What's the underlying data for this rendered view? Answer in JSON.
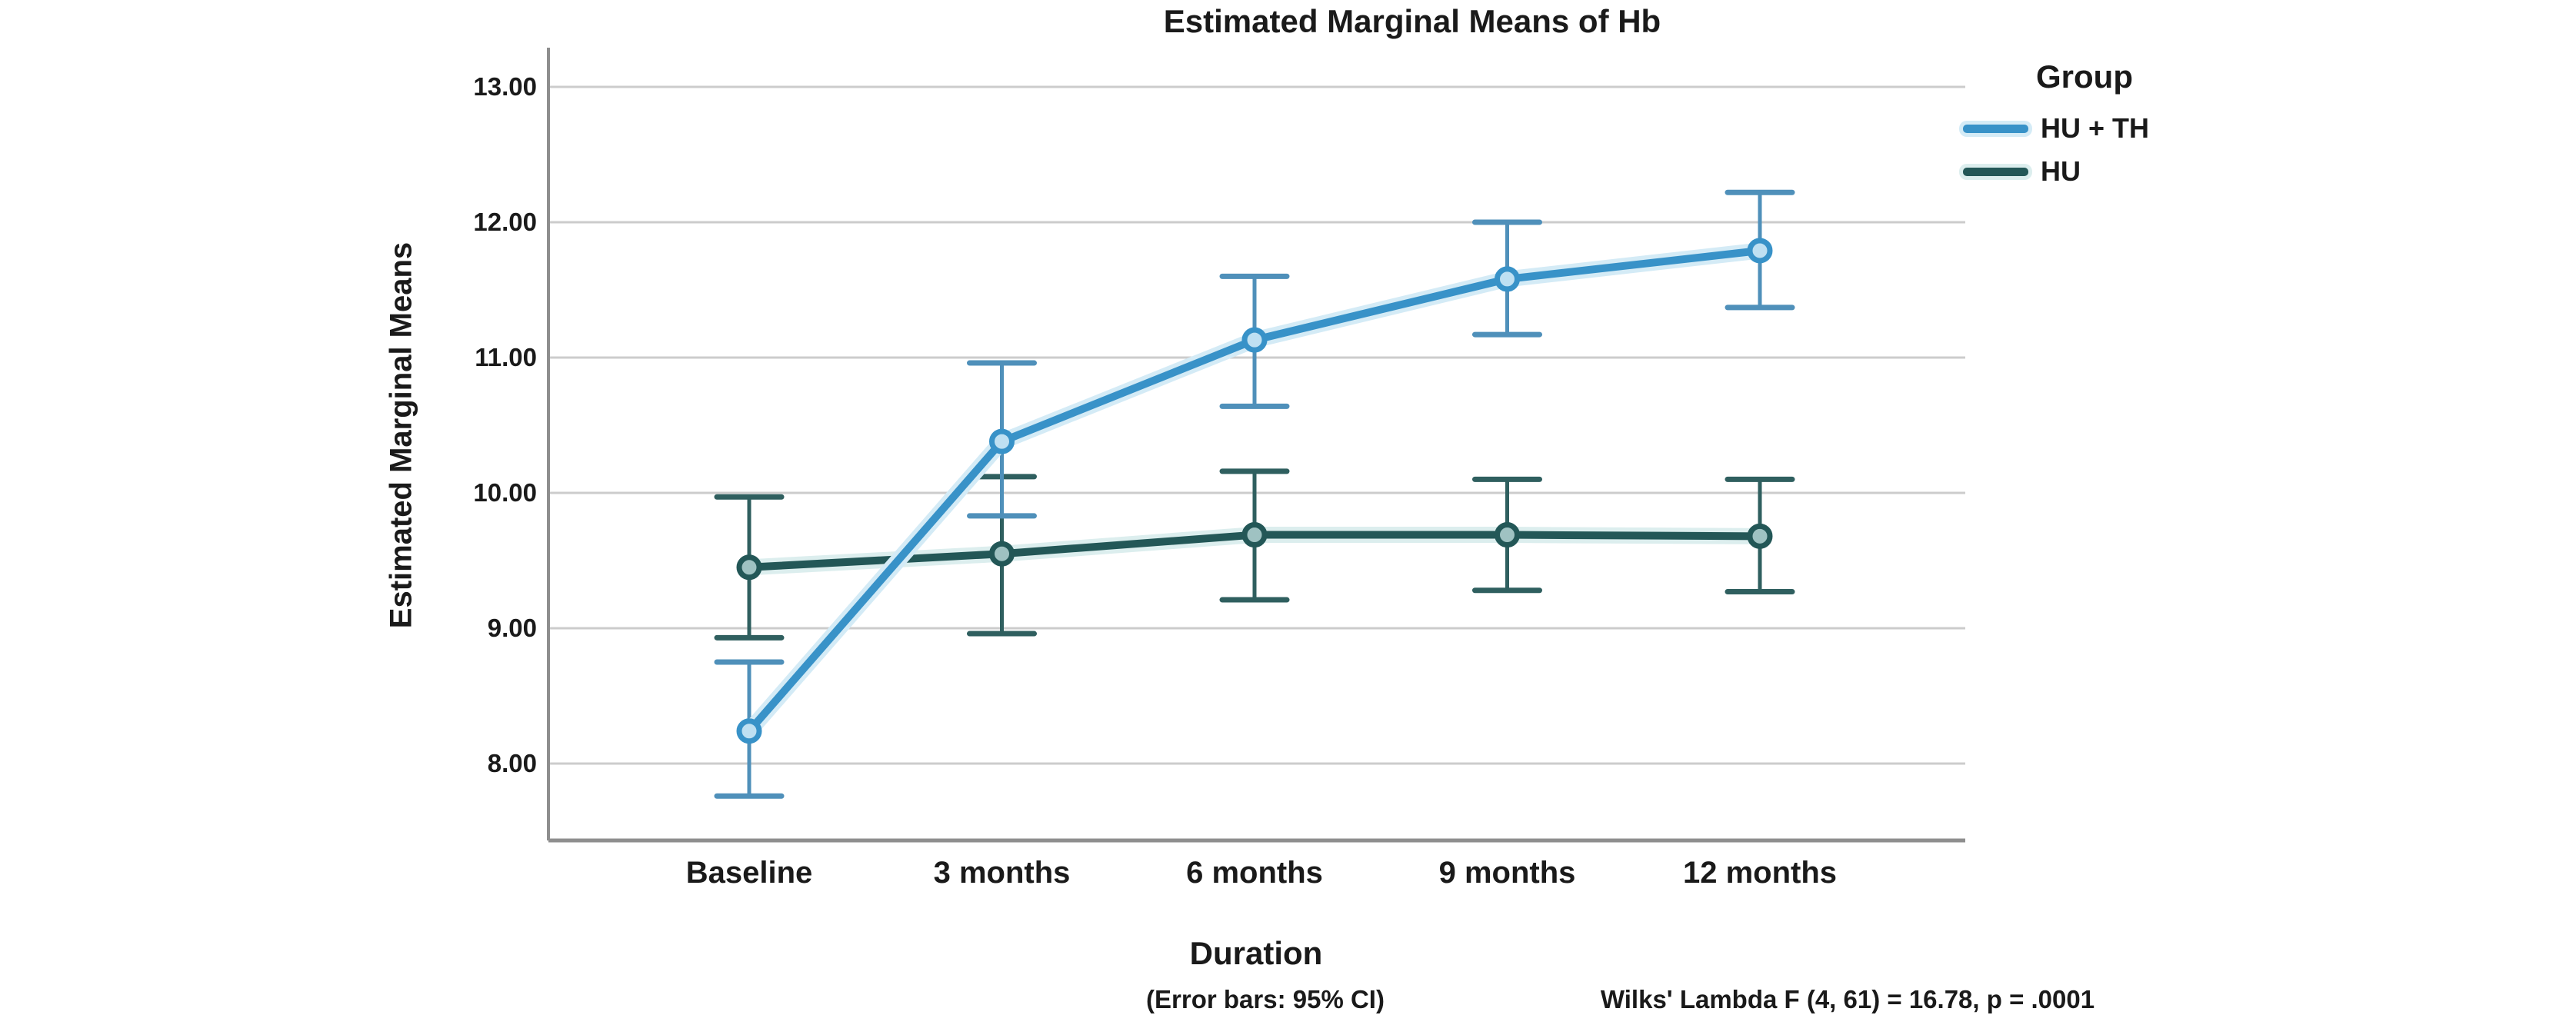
{
  "chart_data": {
    "type": "line",
    "title": "Estimated Marginal Means of Hb",
    "xlabel": "Duration",
    "ylabel": "Estimated Marginal Means",
    "categories": [
      "Baseline",
      "3 months",
      "6 months",
      "9 months",
      "12 months"
    ],
    "ytick_values": [
      13,
      12,
      11,
      10,
      9,
      8
    ],
    "ytick_labels": [
      "13.00",
      "12.00",
      "11.00",
      "10.00",
      "9.00",
      "8.00"
    ],
    "ylim": [
      7.43,
      13.3
    ],
    "grid": true,
    "error_bars": "95% CI",
    "legend": {
      "title": "Group",
      "position": "top-right"
    },
    "series": [
      {
        "name": "HU + TH",
        "color": "#3892c8",
        "halo_color": "#d4ebf6",
        "errorbar_color": "#4f90ba",
        "marker_fill": "#bfe0f2",
        "values": [
          8.24,
          10.38,
          11.13,
          11.58,
          11.79
        ],
        "ci_low": [
          7.76,
          9.83,
          10.64,
          11.17,
          11.37
        ],
        "ci_high": [
          8.75,
          10.96,
          11.6,
          12.0,
          12.22
        ]
      },
      {
        "name": "HU",
        "color": "#235757",
        "halo_color": "#dceeee",
        "errorbar_color": "#2f5f5f",
        "marker_fill": "#9fc2c2",
        "values": [
          9.45,
          9.55,
          9.69,
          9.69,
          9.68
        ],
        "ci_low": [
          8.93,
          8.96,
          9.21,
          9.28,
          9.27
        ],
        "ci_high": [
          9.97,
          10.12,
          10.16,
          10.1,
          10.1
        ]
      }
    ],
    "annotations": {
      "error_bars_note": "(Error bars: 95% CI)",
      "stats_note": "Wilks' Lambda F (4, 61) = 16.78, p = .0001"
    },
    "colors": {
      "background": "#ffffff",
      "axis": "#8e8e8e",
      "grid": "#cccccc",
      "text": "#1a1a1a"
    }
  }
}
